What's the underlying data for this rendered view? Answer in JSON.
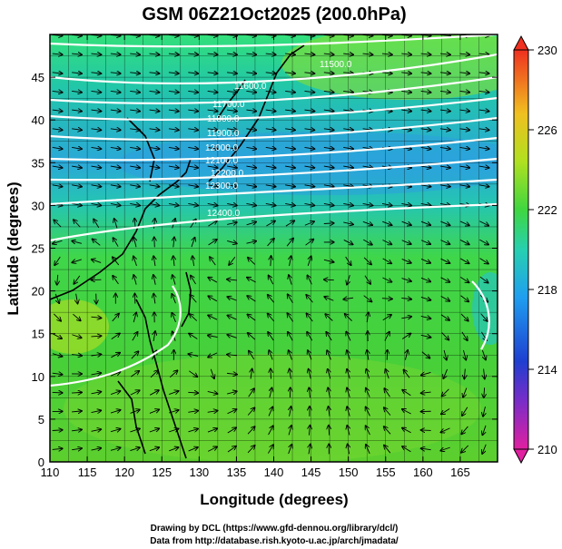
{
  "title": "GSM 06Z21Oct2025 (200.0hPa)",
  "xlabel": "Longitude (degrees)",
  "ylabel": "Latitude  (degrees)",
  "xticks": [
    "110",
    "115",
    "120",
    "125",
    "130",
    "135",
    "140",
    "145",
    "150",
    "155",
    "160",
    "165"
  ],
  "yticks": [
    "0",
    "5",
    "10",
    "15",
    "20",
    "25",
    "30",
    "35",
    "40",
    "45"
  ],
  "xlim": [
    110,
    170
  ],
  "ylim": [
    0,
    50
  ],
  "colorbar": {
    "ticks": [
      "230",
      "226",
      "222",
      "218",
      "214",
      "210"
    ],
    "range": [
      210,
      230
    ]
  },
  "contour_labels": [
    "11500.0",
    "11600.0",
    "11700.0",
    "11800.0",
    "11900.0",
    "12000.0",
    "12100.0",
    "12200.0",
    "12300.0",
    "12400.0"
  ],
  "credits": {
    "line1": "Drawing by DCL (https://www.gfd-dennou.org/library/dcl/)",
    "line2": "Data from http://database.rish.kyoto-u.ac.jp/arch/jmadata/"
  }
}
